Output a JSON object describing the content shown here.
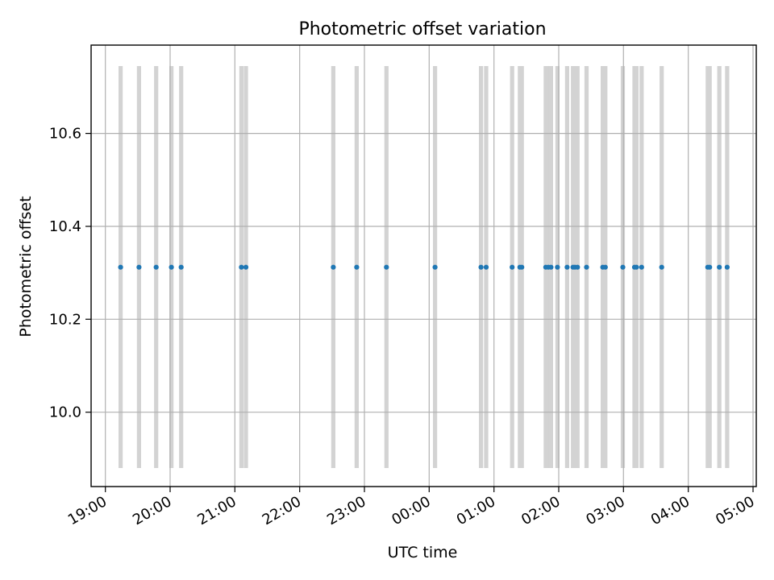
{
  "chart_data": {
    "type": "scatter",
    "title": "Photometric offset variation",
    "xlabel": "UTC time",
    "ylabel": "Photometric offset",
    "x_unit": "hours since 19:00 UTC",
    "xlim": [
      -0.22,
      10.05
    ],
    "ylim": [
      9.84,
      10.79
    ],
    "xticks": [
      {
        "value": 0,
        "label": "19:00"
      },
      {
        "value": 1,
        "label": "20:00"
      },
      {
        "value": 2,
        "label": "21:00"
      },
      {
        "value": 3,
        "label": "22:00"
      },
      {
        "value": 4,
        "label": "23:00"
      },
      {
        "value": 5,
        "label": "00:00"
      },
      {
        "value": 6,
        "label": "01:00"
      },
      {
        "value": 7,
        "label": "02:00"
      },
      {
        "value": 8,
        "label": "03:00"
      },
      {
        "value": 9,
        "label": "04:00"
      },
      {
        "value": 10,
        "label": "05:00"
      }
    ],
    "yticks": [
      {
        "value": 10.0,
        "label": "10.0"
      },
      {
        "value": 10.2,
        "label": "10.2"
      },
      {
        "value": 10.4,
        "label": "10.4"
      },
      {
        "value": 10.6,
        "label": "10.6"
      }
    ],
    "grid": true,
    "series": [
      {
        "name": "photometric offset",
        "color": "#1f77b4",
        "y": 10.312,
        "x": [
          0.236,
          0.52,
          0.785,
          1.02,
          1.17,
          2.1,
          2.17,
          3.52,
          3.88,
          4.34,
          5.09,
          5.8,
          5.88,
          6.28,
          6.4,
          6.43,
          6.8,
          6.84,
          6.88,
          6.98,
          7.13,
          7.22,
          7.25,
          7.29,
          7.43,
          7.68,
          7.72,
          7.99,
          8.17,
          8.2,
          8.28,
          8.59,
          9.3,
          9.33,
          9.48,
          9.6
        ]
      }
    ],
    "exposure_bands": {
      "color": "#d3d3d3",
      "y_range": [
        9.88,
        10.745
      ],
      "x": [
        0.236,
        0.52,
        0.785,
        1.02,
        1.17,
        2.1,
        2.17,
        3.52,
        3.88,
        4.34,
        5.09,
        5.8,
        5.88,
        6.28,
        6.4,
        6.43,
        6.8,
        6.84,
        6.88,
        6.98,
        7.13,
        7.22,
        7.25,
        7.29,
        7.43,
        7.68,
        7.72,
        7.99,
        8.17,
        8.2,
        8.28,
        8.59,
        9.3,
        9.33,
        9.48,
        9.6
      ]
    }
  }
}
